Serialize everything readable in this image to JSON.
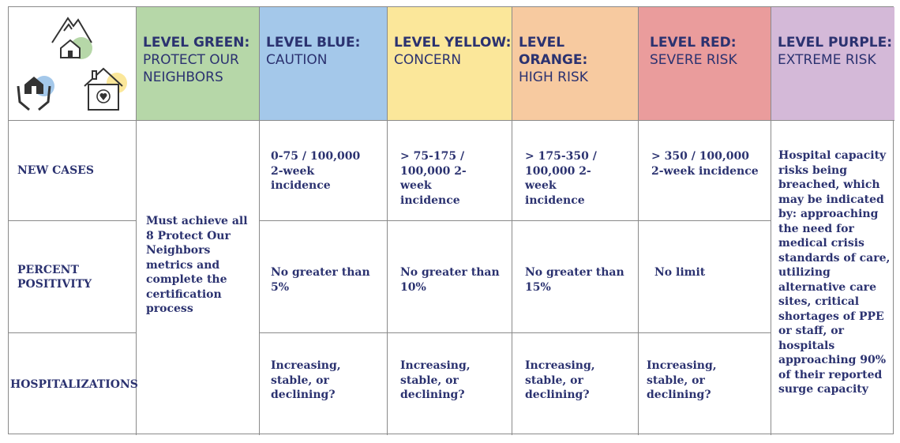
{
  "colors": {
    "green": "#b6d7a8",
    "blue": "#a4c8ea",
    "yellow": "#fbe79a",
    "orange": "#f7caa0",
    "red": "#ea9c9c",
    "purple": "#d4b9d8",
    "text": "#2b3270"
  },
  "icons": [
    "mountain-house-icon",
    "hands-house-icon",
    "heart-house-icon"
  ],
  "headers": [
    {
      "level": "LEVEL GREEN:",
      "sub": "PROTECT OUR NEIGHBORS"
    },
    {
      "level": "LEVEL BLUE:",
      "sub": "CAUTION"
    },
    {
      "level": "LEVEL YELLOW:",
      "sub": "CONCERN"
    },
    {
      "level": "LEVEL ORANGE:",
      "sub": "HIGH RISK"
    },
    {
      "level": "LEVEL RED:",
      "sub": "SEVERE RISK"
    },
    {
      "level": "LEVEL PURPLE:",
      "sub": "EXTREME RISK"
    }
  ],
  "rows": [
    "NEW CASES",
    "PERCENT POSITIVITY",
    "HOSPITALIZATIONS"
  ],
  "green_text": "Must achieve all 8 Protect Our Neighbors metrics and complete the certification process",
  "purple_text": "Hospital capacity risks being breached, which may be indicated by: approaching the need for medical crisis standards of care, utilizing alternative care sites, critical shortages of PPE or staff, or hospitals approaching 90% of their reported surge capacity",
  "new_cases": [
    "0-75 / 100,000 2-week incidence",
    "> 75-175 / 100,000 2-week incidence",
    "> 175-350 / 100,000 2-week incidence",
    "> 350 / 100,000 2-week incidence"
  ],
  "positivity": [
    "No greater than 5%",
    "No greater than 10%",
    "No greater than 15%",
    "No limit"
  ],
  "hospitalizations": [
    "Increasing, stable, or declining?",
    "Increasing, stable, or declining?",
    "Increasing, stable, or declining?",
    "Increasing, stable, or declining?"
  ]
}
